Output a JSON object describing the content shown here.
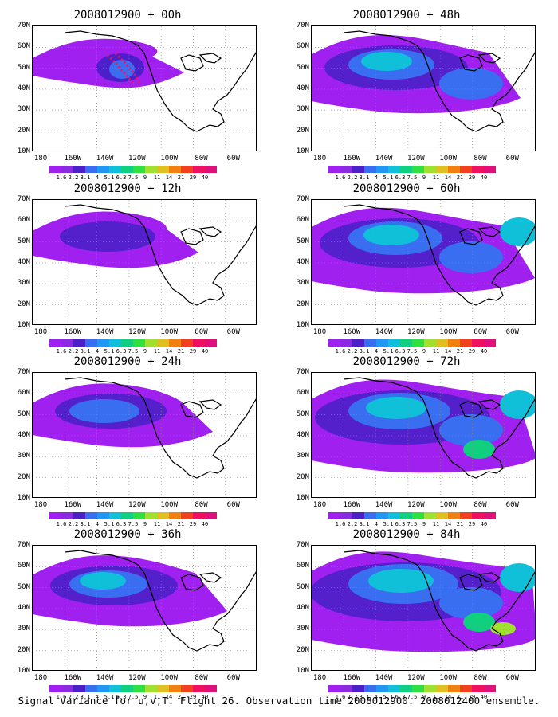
{
  "panels": [
    {
      "title": "2008012900 + 00h",
      "intensity": 0
    },
    {
      "title": "2008012900 + 48h",
      "intensity": 4
    },
    {
      "title": "2008012900 + 12h",
      "intensity": 1
    },
    {
      "title": "2008012900 + 60h",
      "intensity": 5
    },
    {
      "title": "2008012900 + 24h",
      "intensity": 2
    },
    {
      "title": "2008012900 + 72h",
      "intensity": 6
    },
    {
      "title": "2008012900 + 36h",
      "intensity": 3
    },
    {
      "title": "2008012900 + 84h",
      "intensity": 7
    }
  ],
  "lat_labels": [
    "70N",
    "60N",
    "50N",
    "40N",
    "30N",
    "20N",
    "10N"
  ],
  "lon_labels": [
    "180",
    "160W",
    "140W",
    "120W",
    "100W",
    "80W",
    "60W"
  ],
  "colorbar": {
    "labels": [
      "1.6",
      "2.2",
      "3.1",
      "4",
      "5.1",
      "6.3",
      "7.5",
      "9",
      "11",
      "14",
      "21",
      "29",
      "40"
    ],
    "colors": [
      "#a020f0",
      "#8a2be2",
      "#4b20c8",
      "#3a6ef0",
      "#2196f3",
      "#10c0d8",
      "#10d080",
      "#30e040",
      "#a0e030",
      "#e0c020",
      "#f08010",
      "#f04020",
      "#f01060",
      "#e0107a"
    ]
  },
  "footer": "Signal Variance for u,v,T. Flight 26. Observation time 2008012900. 2008012400 ensemble."
}
